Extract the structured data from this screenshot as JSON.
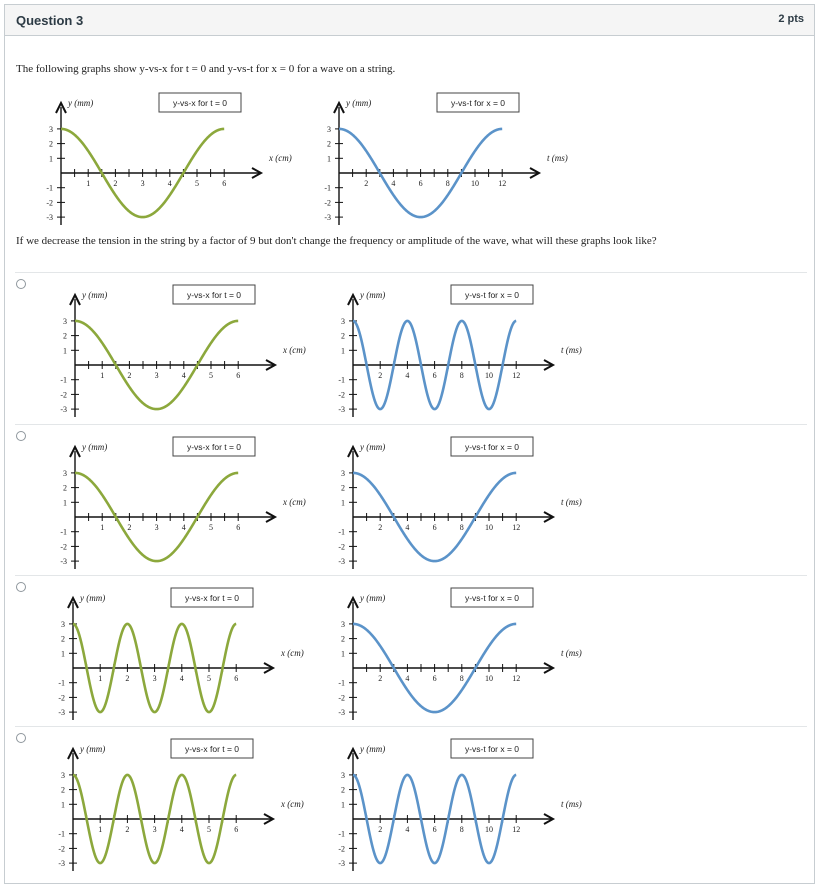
{
  "question": {
    "title": "Question 3",
    "points": "2 pts",
    "prompt": "The following graphs show y-vs-x for t = 0 and y-vs-t for x = 0 for a wave on a string.",
    "followup": "If we decrease the tension in the string by a factor of 9 but don't change the frequency or amplitude of the wave, what will these graphs look like?"
  },
  "colors": {
    "x_wave": "#8ca83c",
    "t_wave": "#5b93c9",
    "axis": "#111111",
    "border": "#c7cdd1"
  },
  "graph_labels": {
    "x_title": "y-vs-x for t = 0",
    "t_title": "y-vs-t for x = 0",
    "y_axis": "y (mm)",
    "x_axis": "x (cm)",
    "t_axis": "t (ms)",
    "x_ticks": [
      "1",
      "2",
      "3",
      "4",
      "5",
      "6"
    ],
    "t_ticks": [
      "2",
      "4",
      "6",
      "8",
      "10",
      "12"
    ],
    "y_ticks": [
      "3",
      "2",
      "1",
      "-1",
      "-2",
      "-3"
    ]
  },
  "chart_data": [
    {
      "group": "prompt",
      "type": "line",
      "title": "y-vs-x for t = 0",
      "xlabel": "x (cm)",
      "ylabel": "y (mm)",
      "xlim": [
        0,
        6
      ],
      "ylim": [
        -3,
        3
      ],
      "amplitude": 3,
      "wavelength": 6,
      "phase_function": "cos",
      "color": "#8ca83c"
    },
    {
      "group": "prompt",
      "type": "line",
      "title": "y-vs-t for x = 0",
      "xlabel": "t (ms)",
      "ylabel": "y (mm)",
      "xlim": [
        0,
        12
      ],
      "ylim": [
        -3,
        3
      ],
      "amplitude": 3,
      "period": 12,
      "phase_function": "cos",
      "color": "#5b93c9"
    },
    {
      "group": "option-1",
      "type": "line",
      "title": "y-vs-x for t = 0",
      "xlabel": "x (cm)",
      "ylabel": "y (mm)",
      "xlim": [
        0,
        6
      ],
      "ylim": [
        -3,
        3
      ],
      "amplitude": 3,
      "wavelength": 6,
      "phase_function": "cos",
      "color": "#8ca83c"
    },
    {
      "group": "option-1",
      "type": "line",
      "title": "y-vs-t for x = 0",
      "xlabel": "t (ms)",
      "ylabel": "y (mm)",
      "xlim": [
        0,
        12
      ],
      "ylim": [
        -3,
        3
      ],
      "amplitude": 3,
      "period": 4,
      "phase_function": "cos",
      "color": "#5b93c9"
    },
    {
      "group": "option-2",
      "type": "line",
      "title": "y-vs-x for t = 0",
      "xlabel": "x (cm)",
      "ylabel": "y (mm)",
      "xlim": [
        0,
        6
      ],
      "ylim": [
        -3,
        3
      ],
      "amplitude": 3,
      "wavelength": 6,
      "phase_function": "cos",
      "color": "#8ca83c"
    },
    {
      "group": "option-2",
      "type": "line",
      "title": "y-vs-t for x = 0",
      "xlabel": "t (ms)",
      "ylabel": "y (mm)",
      "xlim": [
        0,
        12
      ],
      "ylim": [
        -3,
        3
      ],
      "amplitude": 3,
      "period": 12,
      "phase_function": "cos",
      "color": "#5b93c9"
    },
    {
      "group": "option-3",
      "type": "line",
      "title": "y-vs-x for t = 0",
      "xlabel": "x (cm)",
      "ylabel": "y (mm)",
      "xlim": [
        0,
        6
      ],
      "ylim": [
        -3,
        3
      ],
      "amplitude": 3,
      "wavelength": 2,
      "phase_function": "cos",
      "color": "#8ca83c"
    },
    {
      "group": "option-3",
      "type": "line",
      "title": "y-vs-t for x = 0",
      "xlabel": "t (ms)",
      "ylabel": "y (mm)",
      "xlim": [
        0,
        12
      ],
      "ylim": [
        -3,
        3
      ],
      "amplitude": 3,
      "period": 12,
      "phase_function": "cos",
      "color": "#5b93c9"
    },
    {
      "group": "option-4",
      "type": "line",
      "title": "y-vs-x for t = 0",
      "xlabel": "x (cm)",
      "ylabel": "y (mm)",
      "xlim": [
        0,
        6
      ],
      "ylim": [
        -3,
        3
      ],
      "amplitude": 3,
      "wavelength": 2,
      "phase_function": "cos",
      "color": "#8ca83c"
    },
    {
      "group": "option-4",
      "type": "line",
      "title": "y-vs-t for x = 0",
      "xlabel": "t (ms)",
      "ylabel": "y (mm)",
      "xlim": [
        0,
        12
      ],
      "ylim": [
        -3,
        3
      ],
      "amplitude": 3,
      "period": 4,
      "phase_function": "cos",
      "color": "#5b93c9"
    }
  ]
}
